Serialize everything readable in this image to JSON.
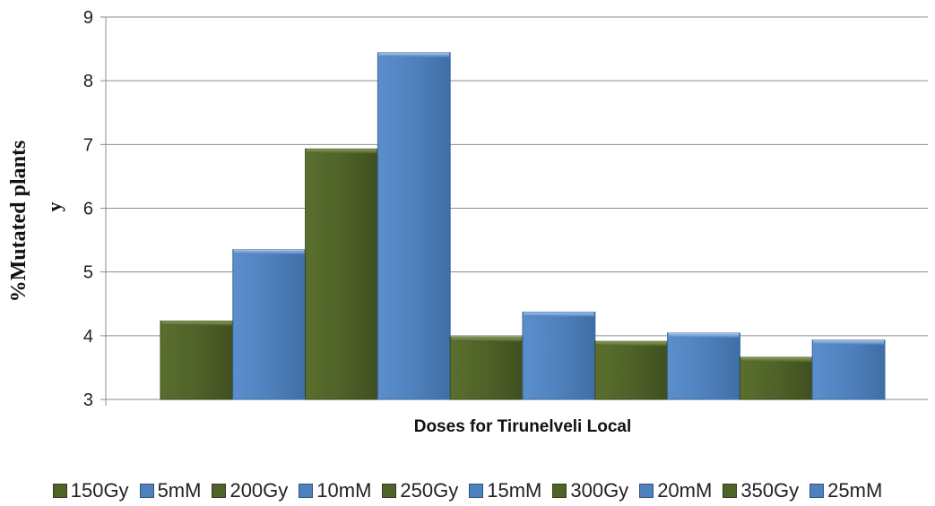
{
  "chart_data": {
    "type": "bar",
    "title": "",
    "xlabel": "Doses for Tirunelveli Local",
    "ylabel_lines": [
      "%Mutated plants",
      "y"
    ],
    "ylim": [
      3,
      9
    ],
    "yticks": [
      "3",
      "4",
      "5",
      "6",
      "7",
      "8",
      "9"
    ],
    "grid": true,
    "legend_position": "bottom",
    "categories": [
      "150Gy",
      "5mM",
      "200Gy",
      "10mM",
      "250Gy",
      "15mM",
      "300Gy",
      "20mM",
      "350Gy",
      "25mM"
    ],
    "values": [
      4.23,
      5.35,
      6.93,
      8.44,
      3.98,
      4.37,
      3.91,
      4.04,
      3.66,
      3.93
    ],
    "series_colors": [
      "#4f6228",
      "#4f81bd",
      "#4f6228",
      "#4f81bd",
      "#4f6228",
      "#4f81bd",
      "#4f6228",
      "#4f81bd",
      "#4f6228",
      "#4f81bd"
    ]
  }
}
